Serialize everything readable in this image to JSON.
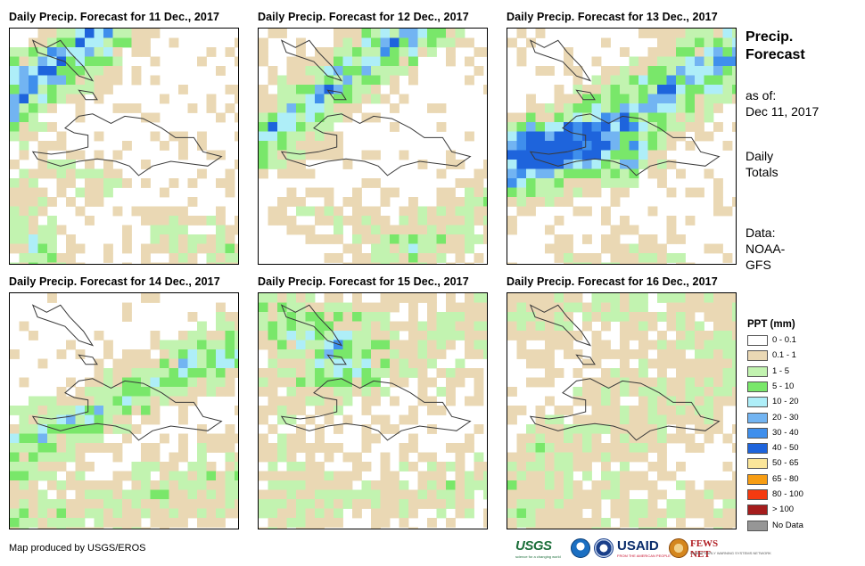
{
  "panels": [
    {
      "title": "Daily Precip. Forecast for 11 Dec., 2017"
    },
    {
      "title": "Daily Precip. Forecast for 12 Dec., 2017"
    },
    {
      "title": "Daily Precip. Forecast for 13 Dec., 2017"
    },
    {
      "title": "Daily Precip. Forecast for 14 Dec., 2017"
    },
    {
      "title": "Daily Precip. Forecast for 15 Dec., 2017"
    },
    {
      "title": "Daily Precip. Forecast for 16 Dec., 2017"
    }
  ],
  "sidebar": {
    "title_line1": "Precip.",
    "title_line2": "Forecast",
    "asof_label": "as of:",
    "asof_date": "Dec 11, 2017",
    "totals_line1": "Daily",
    "totals_line2": "Totals",
    "data_label": "Data:",
    "data_source_line1": "NOAA-",
    "data_source_line2": "GFS"
  },
  "legend": {
    "title": "PPT (mm)",
    "items": [
      {
        "label": "0 - 0.1",
        "color": "#ffffff"
      },
      {
        "label": "0.1 - 1",
        "color": "#ead8b4"
      },
      {
        "label": "1 - 5",
        "color": "#c2f3b0"
      },
      {
        "label": "5 - 10",
        "color": "#79e76a"
      },
      {
        "label": "10 - 20",
        "color": "#aeeef8"
      },
      {
        "label": "20 - 30",
        "color": "#72b4f2"
      },
      {
        "label": "30 - 40",
        "color": "#3f8fec"
      },
      {
        "label": "40 - 50",
        "color": "#1e64dc"
      },
      {
        "label": "50 - 65",
        "color": "#fbe69a"
      },
      {
        "label": "65 - 80",
        "color": "#f79d13"
      },
      {
        "label": "80 - 100",
        "color": "#f43a10"
      },
      {
        "label": "> 100",
        "color": "#a51c1c"
      },
      {
        "label": "No Data",
        "color": "#969696"
      }
    ]
  },
  "footer": {
    "credit": "Map produced by USGS/EROS",
    "logo_usgs": "USGS",
    "logo_usgs_tag": "science for a changing world",
    "logo_usaid": "USAID",
    "logo_usaid_tag": "FROM THE AMERICAN PEOPLE",
    "logo_fews": "FEWS NET",
    "logo_fews_tag": "FAMINE EARLY WARNING SYSTEMS NETWORK"
  }
}
